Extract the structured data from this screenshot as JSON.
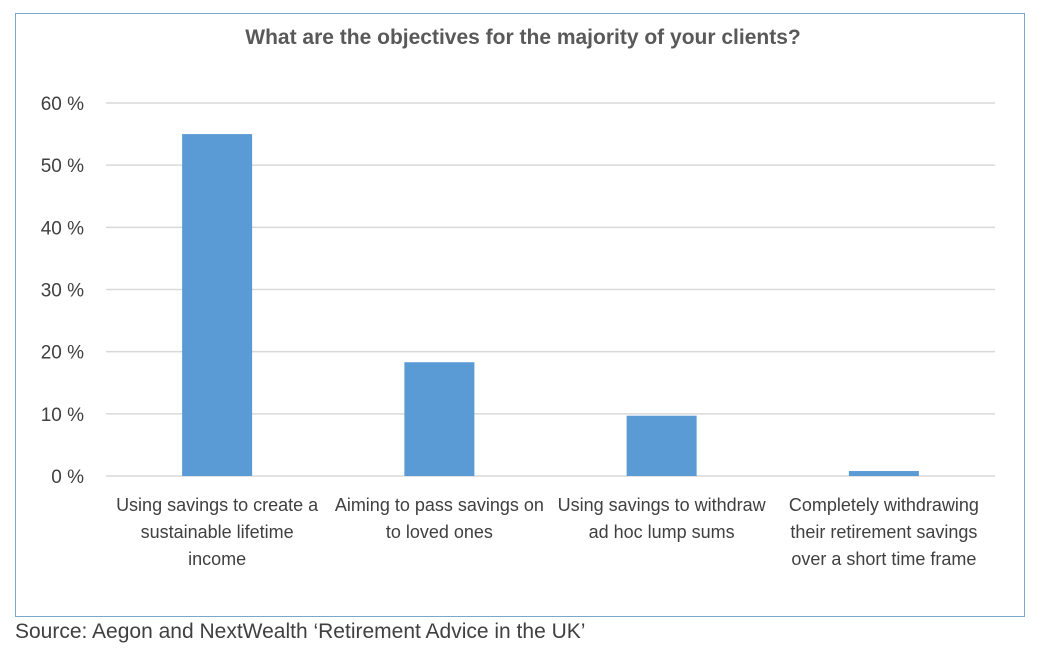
{
  "chart_data": {
    "type": "bar",
    "title": "What are the objectives for the majority of your clients?",
    "categories": [
      "Using savings to create a sustainable lifetime income",
      "Aiming to pass savings on to loved ones",
      "Using savings to withdraw ad hoc lump sums",
      "Completely withdrawing their retirement savings over a short time frame"
    ],
    "values": [
      55,
      18.3,
      9.7,
      0.8
    ],
    "ylim": [
      0,
      60
    ],
    "yticks": [
      0,
      10,
      20,
      30,
      40,
      50,
      60
    ],
    "ytick_labels": [
      "0 %",
      "10 %",
      "20 %",
      "30 %",
      "40 %",
      "50 %",
      "60 %"
    ],
    "xlabel": "",
    "ylabel": "",
    "grid": true,
    "legend": "none",
    "bar_color": "#5b9bd5",
    "grid_color": "#d9d9d9"
  },
  "source": "Source: Aegon and NextWealth ‘Retirement Advice in the UK’"
}
